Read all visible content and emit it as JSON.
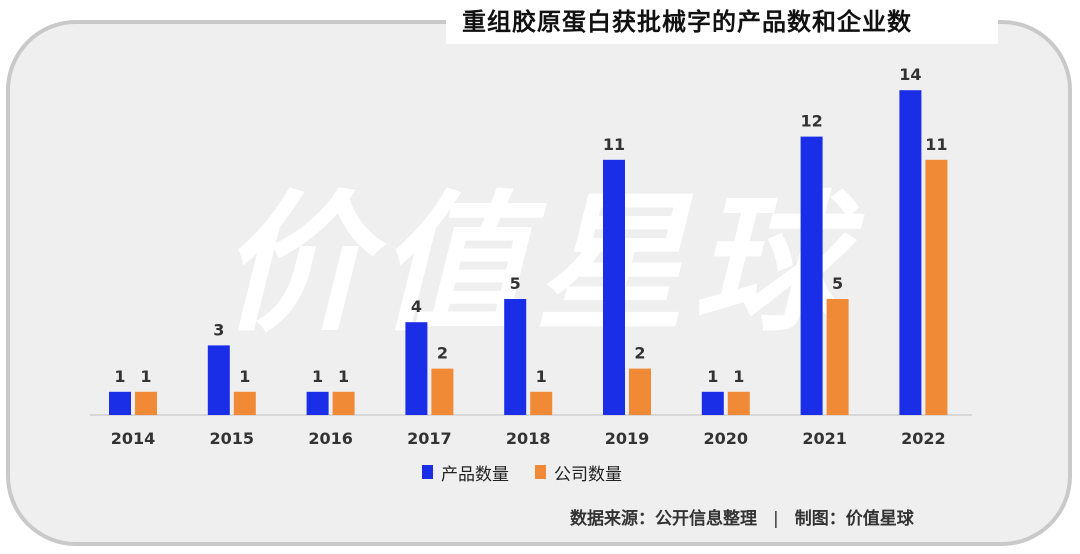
{
  "title": "重组胶原蛋白获批械字的产品数和企业数",
  "watermark": "价值星球",
  "footer": {
    "source": "数据来源：公开信息整理",
    "separator": "|",
    "credit": "制图：价值星球"
  },
  "colors": {
    "product": "#1a2ee8",
    "company": "#f08a36",
    "frame": "#c9c9c9",
    "background": "#efefef"
  },
  "chart_data": {
    "type": "bar",
    "categories": [
      "2014",
      "2015",
      "2016",
      "2017",
      "2018",
      "2019",
      "2020",
      "2021",
      "2022"
    ],
    "series": [
      {
        "name": "产品数量",
        "values": [
          1,
          3,
          1,
          4,
          5,
          11,
          1,
          12,
          14
        ]
      },
      {
        "name": "公司数量",
        "values": [
          1,
          1,
          1,
          2,
          1,
          2,
          1,
          5,
          11
        ]
      }
    ],
    "ylim": [
      0,
      14
    ],
    "grid": false,
    "legend_position": "bottom-center",
    "data_labels": true
  }
}
